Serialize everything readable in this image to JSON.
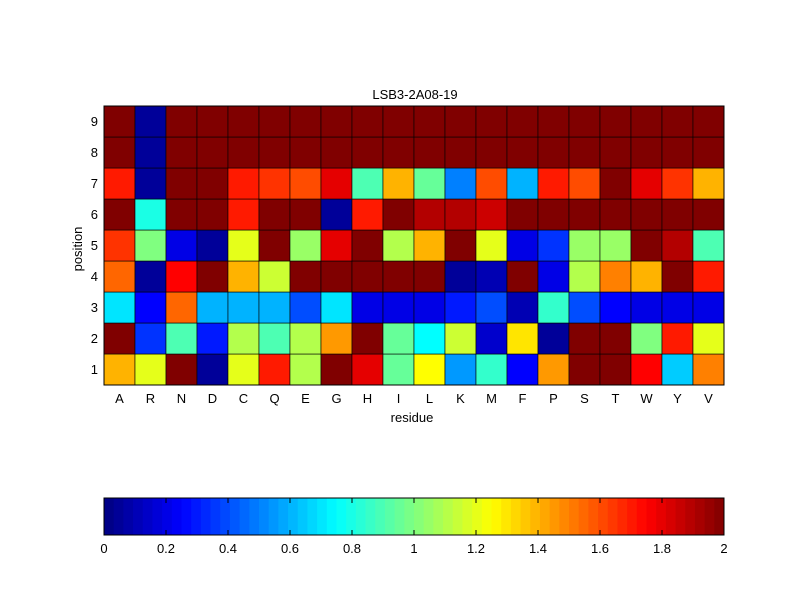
{
  "chart_data": {
    "type": "heatmap",
    "title": "LSB3-2A08-19",
    "xlabel": "residue",
    "ylabel": "position",
    "x_categories": [
      "A",
      "R",
      "N",
      "D",
      "C",
      "Q",
      "E",
      "G",
      "H",
      "I",
      "L",
      "K",
      "M",
      "F",
      "P",
      "S",
      "T",
      "W",
      "Y",
      "V"
    ],
    "y_categories": [
      "1",
      "2",
      "3",
      "4",
      "5",
      "6",
      "7",
      "8",
      "9"
    ],
    "values": [
      [
        1.4,
        1.2,
        2.0,
        0.05,
        1.2,
        1.7,
        1.1,
        2.0,
        1.8,
        0.95,
        1.25,
        0.55,
        0.85,
        0.25,
        1.45,
        2.0,
        2.0,
        1.75,
        0.65,
        1.5
      ],
      [
        2.0,
        0.35,
        0.9,
        0.3,
        1.1,
        0.9,
        1.1,
        1.45,
        2.0,
        0.95,
        0.75,
        1.15,
        0.15,
        1.3,
        0.05,
        2.0,
        2.0,
        1.0,
        1.7,
        1.2
      ],
      [
        0.7,
        0.25,
        1.55,
        0.6,
        0.6,
        0.6,
        0.4,
        0.7,
        0.2,
        0.2,
        0.2,
        0.3,
        0.4,
        0.1,
        0.85,
        0.4,
        0.25,
        0.2,
        0.2,
        0.2
      ],
      [
        1.55,
        0.05,
        1.75,
        2.0,
        1.4,
        1.15,
        2.0,
        2.0,
        2.0,
        2.0,
        2.0,
        0.05,
        0.1,
        2.0,
        0.2,
        1.1,
        1.5,
        1.4,
        2.0,
        1.7
      ],
      [
        1.65,
        1.0,
        0.2,
        0.05,
        1.2,
        2.0,
        1.05,
        1.8,
        2.0,
        1.1,
        1.4,
        2.0,
        1.2,
        0.2,
        0.35,
        1.05,
        1.05,
        2.0,
        1.9,
        0.9
      ],
      [
        2.0,
        0.8,
        2.0,
        2.0,
        1.7,
        2.0,
        2.0,
        0.05,
        1.7,
        2.0,
        1.9,
        1.9,
        1.85,
        2.0,
        2.0,
        2.0,
        2.0,
        2.0,
        2.0,
        2.0
      ],
      [
        1.7,
        0.05,
        2.0,
        2.0,
        1.7,
        1.65,
        1.6,
        1.8,
        0.9,
        1.4,
        0.95,
        0.5,
        1.6,
        0.6,
        1.7,
        1.6,
        2.0,
        1.8,
        1.65,
        1.4
      ],
      [
        2.0,
        0.05,
        2.0,
        2.0,
        2.0,
        2.0,
        2.0,
        2.0,
        2.0,
        2.0,
        2.0,
        2.0,
        2.0,
        2.0,
        2.0,
        2.0,
        2.0,
        2.0,
        2.0,
        2.0
      ],
      [
        2.0,
        0.05,
        2.0,
        2.0,
        2.0,
        2.0,
        2.0,
        2.0,
        2.0,
        2.0,
        2.0,
        2.0,
        2.0,
        2.0,
        2.0,
        2.0,
        2.0,
        2.0,
        2.0,
        2.0
      ]
    ],
    "value_range": [
      0,
      2
    ],
    "colormap": "jet",
    "colorbar": {
      "orientation": "horizontal",
      "placement": "bottom",
      "ticks": [
        0,
        0.2,
        0.4,
        0.6,
        0.8,
        1,
        1.2,
        1.4,
        1.6,
        1.8,
        2
      ],
      "tick_labels": [
        "0",
        "0.2",
        "0.4",
        "0.6",
        "0.8",
        "1",
        "1.2",
        "1.4",
        "1.6",
        "1.8",
        "2"
      ]
    },
    "grid": false
  }
}
